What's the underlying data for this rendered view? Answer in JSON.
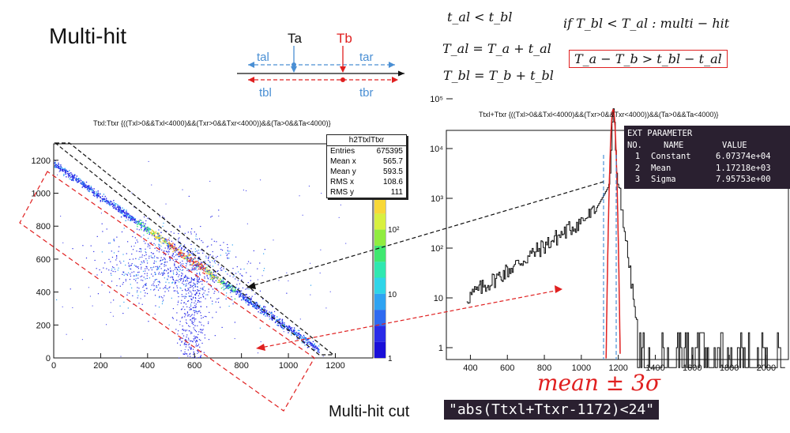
{
  "title": "Multi-hit",
  "timing_diagram": {
    "labels": {
      "ta": "Ta",
      "tb": "Tb",
      "tal": "tal",
      "tar": "tar",
      "tbl": "tbl",
      "tbr": "tbr"
    },
    "colors": {
      "ta": "#4a8fd4",
      "tb": "#e02020",
      "black": "#111111"
    }
  },
  "equations": {
    "cond_time": "t_al < t_bl",
    "tal_def": "T_al = T_a + t_al",
    "tbl_def": "T_bl = T_b + t_bl",
    "if_rule": "if T_bl < T_al : multi − hit",
    "boxed": "T_a − T_b > t_bl − t_al"
  },
  "left_plot": {
    "title": "Ttxl:Ttxr {((Txl>0&&Txl<4000)&&(Txr>0&&Txr<4000))&&(Ta>0&&Ta<4000)}",
    "stats": {
      "name": "h2TtxlTtxr",
      "rows": [
        {
          "label": "Entries",
          "value": "675395"
        },
        {
          "label": "Mean x",
          "value": "565.7"
        },
        {
          "label": "Mean y",
          "value": "593.5"
        },
        {
          "label": "RMS x",
          "value": "108.6"
        },
        {
          "label": "RMS y",
          "value": "111"
        }
      ]
    },
    "x_ticks": [
      "0",
      "200",
      "400",
      "600",
      "800",
      "1000",
      "1200"
    ],
    "y_ticks": [
      "0",
      "200",
      "400",
      "600",
      "800",
      "1000",
      "1200"
    ],
    "z_ticks": [
      "1",
      "10",
      "10²"
    ]
  },
  "right_plot": {
    "title": "Ttxl+Ttxr {((Txl>0&&Txl<4000)&&(Txr>0&&Txr<4000))&&(Ta>0&&Ta<4000)}",
    "fit": {
      "header": "EXT PARAMETER",
      "col_no": "NO.",
      "col_name": "NAME",
      "col_value": "VALUE",
      "rows": [
        {
          "no": "1",
          "name": "Constant",
          "value": "6.07374e+04"
        },
        {
          "no": "2",
          "name": "Mean",
          "value": "1.17218e+03"
        },
        {
          "no": "3",
          "name": "Sigma",
          "value": "7.95753e+00"
        }
      ]
    },
    "x_ticks": [
      "400",
      "600",
      "800",
      "1000",
      "1200",
      "1400",
      "1600",
      "1800",
      "2000"
    ],
    "y_ticks": [
      "1",
      "10",
      "10²",
      "10³",
      "10⁴",
      "10⁵"
    ]
  },
  "mean_sigma": "mean ± 3σ",
  "cut_label": "Multi-hit cut",
  "cut_code": "\"abs(Ttxl+Ttxr-1172)<24\""
}
